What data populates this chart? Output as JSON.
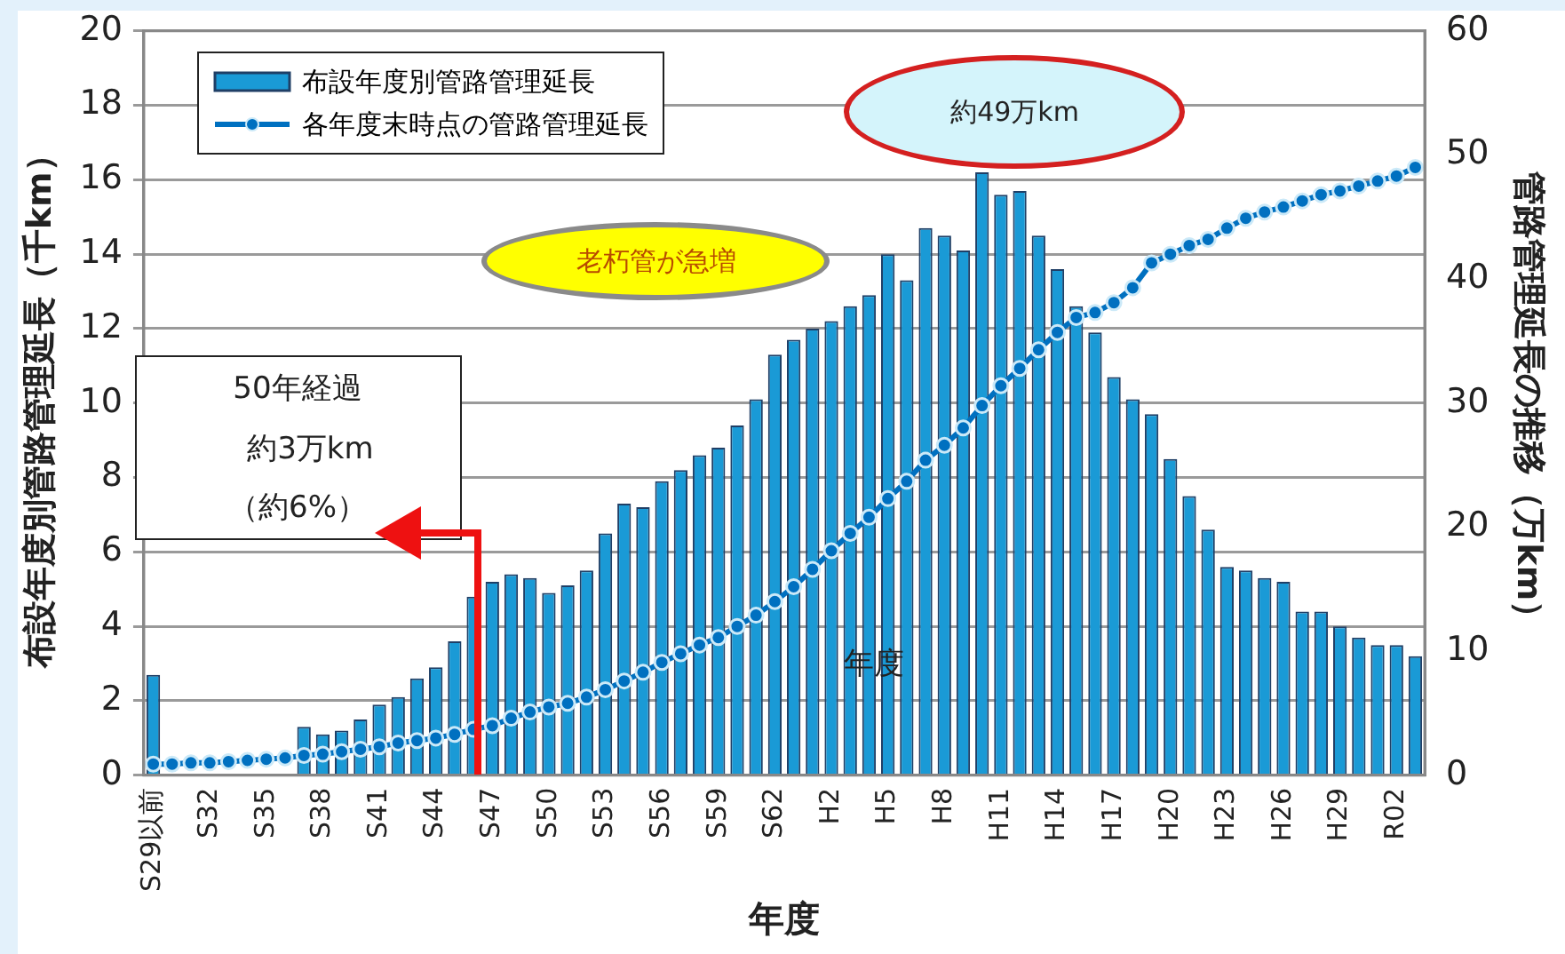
{
  "chart_data": {
    "type": "bar",
    "xlabel": "年度",
    "ylabel": "布設年度別管路管理延長（千km）",
    "y2label": "管路管理延長の推移（万km）",
    "categories": [
      "S29以前",
      null,
      null,
      "S32",
      null,
      null,
      "S35",
      null,
      null,
      "S38",
      null,
      null,
      "S41",
      null,
      null,
      "S44",
      null,
      null,
      "S47",
      null,
      null,
      "S50",
      null,
      null,
      "S53",
      null,
      null,
      "S56",
      null,
      null,
      "S59",
      null,
      null,
      "S62",
      null,
      null,
      "H2",
      null,
      null,
      "H5",
      null,
      null,
      "H8",
      null,
      null,
      "H11",
      null,
      null,
      "H14",
      null,
      null,
      "H17",
      null,
      null,
      "H20",
      null,
      null,
      "H23",
      null,
      null,
      "H26",
      null,
      null,
      "H29",
      null,
      null,
      "R02",
      null
    ],
    "series": [
      {
        "name": "布設年度別管路管理延長",
        "color": "#1a9ad6",
        "values": [
          2.7,
          null,
          null,
          null,
          null,
          null,
          null,
          null,
          1.3,
          1.1,
          1.2,
          1.5,
          1.9,
          2.1,
          2.6,
          2.9,
          3.6,
          4.8,
          5.2,
          5.4,
          5.3,
          4.9,
          5.1,
          5.5,
          6.5,
          7.3,
          7.2,
          7.9,
          8.2,
          8.6,
          8.8,
          9.4,
          10.1,
          11.3,
          11.7,
          12.0,
          12.2,
          12.6,
          12.9,
          14.0,
          13.3,
          14.7,
          14.5,
          14.1,
          16.2,
          15.6,
          15.7,
          14.5,
          13.6,
          12.6,
          11.9,
          10.7,
          10.1,
          9.7,
          8.5,
          7.5,
          6.6,
          5.6,
          5.5,
          5.3,
          5.2,
          4.4,
          4.4,
          4.0,
          3.7,
          3.5,
          3.5,
          3.2
        ]
      },
      {
        "name": "各年度末時点の管路管理延長",
        "type": "line",
        "axis": "y2",
        "color": "#0070c0",
        "values": [
          0.9,
          0.9,
          1.0,
          1.0,
          1.1,
          1.2,
          1.3,
          1.4,
          1.6,
          1.7,
          1.9,
          2.1,
          2.3,
          2.6,
          2.8,
          3.0,
          3.3,
          3.7,
          4.0,
          4.6,
          5.1,
          5.5,
          5.8,
          6.3,
          6.9,
          7.6,
          8.3,
          9.1,
          9.8,
          10.5,
          11.1,
          12.0,
          12.9,
          14.0,
          15.2,
          16.6,
          18.1,
          19.5,
          20.8,
          22.3,
          23.7,
          25.4,
          26.6,
          28.0,
          29.8,
          31.4,
          32.8,
          34.3,
          35.7,
          36.9,
          37.3,
          38.1,
          39.3,
          41.3,
          42.0,
          42.7,
          43.2,
          44.1,
          44.9,
          45.4,
          45.8,
          46.3,
          46.8,
          47.1,
          47.5,
          47.9,
          48.3,
          49.0
        ]
      }
    ],
    "ylim": [
      0,
      20
    ],
    "yticks": [
      0,
      2,
      4,
      6,
      8,
      10,
      12,
      14,
      16,
      18,
      20
    ],
    "y2lim": [
      0,
      60
    ],
    "y2ticks": [
      0,
      10,
      20,
      30,
      40,
      50,
      60
    ],
    "grid": "y",
    "legend": "top left",
    "marker": "circle",
    "annotations": [
      "約49万km",
      "老朽管が急増",
      "50年経過",
      "約3万km",
      "（約6%）",
      "年度"
    ]
  }
}
